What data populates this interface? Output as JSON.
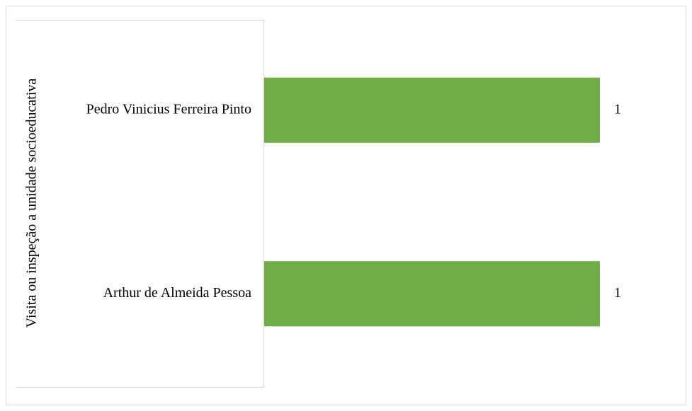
{
  "chart_data": {
    "type": "barh",
    "group_label": "Visita ou inspeção a unidade socioeducativa",
    "categories": [
      "Pedro Vinicius Ferreira Pinto",
      "Arthur de Almeida Pessoa"
    ],
    "values": [
      1,
      1
    ],
    "color": "#70ad47"
  }
}
